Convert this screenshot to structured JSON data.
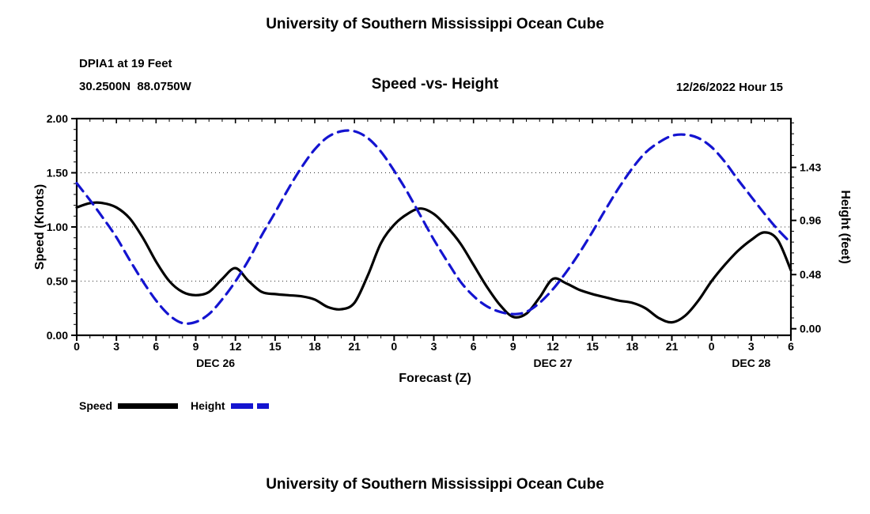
{
  "page": {
    "top_title": "University of Southern Mississippi Ocean Cube",
    "bottom_title": "University of Southern Mississippi Ocean Cube"
  },
  "header": {
    "station": "DPIA1 at 19 Feet",
    "coords": "30.2500N  88.0750W",
    "subtitle": "Speed -vs- Height",
    "datetime": "12/26/2022 Hour 15"
  },
  "colors": {
    "speed_black": "#000000",
    "height_blue": "#1414d0",
    "grid_gray": "#333333"
  },
  "chart_data": {
    "type": "line",
    "title": "Speed -vs- Height",
    "xlabel": "Forecast (Z)",
    "ylabel_left": "Speed (Knots)",
    "ylabel_right": "Height (feet)",
    "x": [
      0,
      1,
      2,
      3,
      4,
      5,
      6,
      7,
      8,
      9,
      10,
      11,
      12,
      13,
      14,
      15,
      16,
      17,
      18,
      19,
      20,
      21,
      22,
      23,
      24,
      25,
      26,
      27,
      28,
      29,
      30,
      31,
      32,
      33,
      34,
      35,
      36,
      37,
      38,
      39,
      40,
      41,
      42,
      43,
      44,
      45,
      46,
      47,
      48,
      49,
      50,
      51,
      52,
      53,
      54
    ],
    "x_major_step": 3,
    "x_tick_labels": [
      "0",
      "3",
      "6",
      "9",
      "12",
      "15",
      "18",
      "21",
      "0",
      "3",
      "6",
      "9",
      "12",
      "15",
      "18",
      "21",
      "0",
      "3",
      "6"
    ],
    "day_labels": [
      {
        "label": "DEC 26",
        "hour": 10.5
      },
      {
        "label": "DEC 27",
        "hour": 36
      },
      {
        "label": "DEC 28",
        "hour": 51
      }
    ],
    "left_axis": {
      "min": 0,
      "max": 2,
      "minor_step": 0.1,
      "tick_values": [
        0,
        0.5,
        1,
        1.5,
        2
      ],
      "tick_labels": [
        "0.00",
        "0.50",
        "1.00",
        "1.50",
        "2.00"
      ]
    },
    "right_axis": {
      "min": -0.058,
      "max": 1.862,
      "minor_step": 0.096,
      "ticks": [
        {
          "value": 0.0,
          "label": "0.00"
        },
        {
          "value": 0.48,
          "label": "0.48"
        },
        {
          "value": 0.96,
          "label": "0.96"
        },
        {
          "value": 1.43,
          "label": "1.43"
        }
      ]
    },
    "series": [
      {
        "name": "Speed",
        "axis": "left",
        "units": "knots",
        "color": "#000000",
        "style": "solid",
        "values": [
          1.18,
          1.22,
          1.22,
          1.18,
          1.08,
          0.9,
          0.68,
          0.5,
          0.4,
          0.37,
          0.4,
          0.52,
          0.62,
          0.5,
          0.4,
          0.38,
          0.37,
          0.36,
          0.33,
          0.26,
          0.24,
          0.3,
          0.55,
          0.85,
          1.02,
          1.12,
          1.17,
          1.12,
          1.0,
          0.85,
          0.65,
          0.45,
          0.28,
          0.17,
          0.2,
          0.35,
          0.52,
          0.48,
          0.42,
          0.38,
          0.35,
          0.32,
          0.3,
          0.25,
          0.16,
          0.12,
          0.18,
          0.32,
          0.5,
          0.65,
          0.78,
          0.88,
          0.95,
          0.88,
          0.6
        ]
      },
      {
        "name": "Height",
        "axis": "right",
        "units": "feet",
        "color": "#1414d0",
        "style": "dashed",
        "values": [
          1.29,
          1.14,
          0.98,
          0.81,
          0.61,
          0.42,
          0.25,
          0.12,
          0.05,
          0.06,
          0.13,
          0.26,
          0.42,
          0.61,
          0.83,
          1.03,
          1.24,
          1.43,
          1.59,
          1.7,
          1.75,
          1.75,
          1.69,
          1.57,
          1.4,
          1.21,
          1.0,
          0.79,
          0.6,
          0.42,
          0.29,
          0.2,
          0.15,
          0.13,
          0.15,
          0.23,
          0.35,
          0.5,
          0.67,
          0.86,
          1.06,
          1.25,
          1.42,
          1.56,
          1.65,
          1.71,
          1.72,
          1.69,
          1.61,
          1.48,
          1.32,
          1.17,
          1.02,
          0.88,
          0.76
        ]
      }
    ],
    "legend_position": "bottom-left",
    "grid": true
  }
}
